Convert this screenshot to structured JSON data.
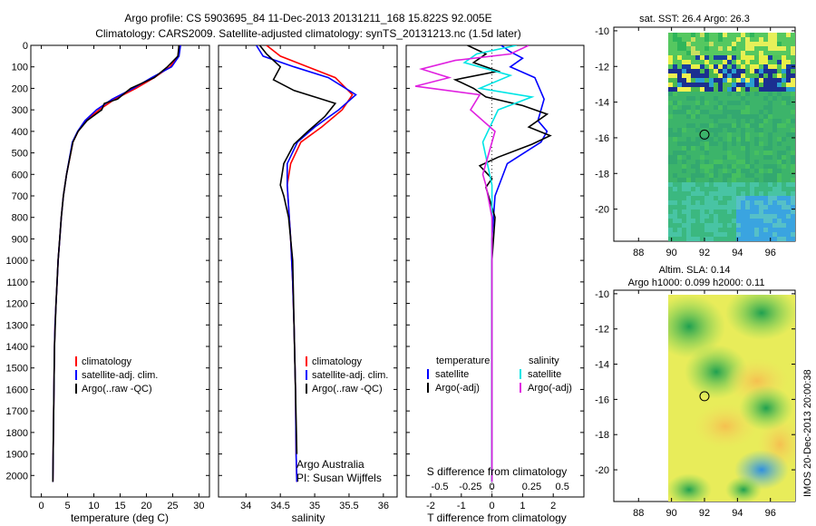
{
  "title_line1": "Argo profile: CS 5903695_84 11-Dec-2013 20131211_168 15.822S 92.005E",
  "title_line2": "Climatology: CARS2009. Satellite-adjusted climatology: synTS_20131213.nc (1.5d later)",
  "colors": {
    "climatology": "#ff0000",
    "satellite": "#0000ff",
    "argo": "#000000",
    "sal_satellite": "#00e5e5",
    "sal_argo": "#e020e0"
  },
  "chart_data": [
    {
      "type": "line",
      "id": "temperature",
      "xlabel": "temperature (deg C)",
      "xlim": [
        -2,
        32
      ],
      "ylim": [
        0,
        2100
      ],
      "y_inverted": true,
      "xticks": [
        0,
        5,
        10,
        15,
        20,
        25,
        30
      ],
      "yticks": [
        0,
        100,
        200,
        300,
        400,
        500,
        600,
        700,
        800,
        900,
        1000,
        1100,
        1200,
        1300,
        1400,
        1500,
        1600,
        1700,
        1800,
        1900,
        2000
      ],
      "legend": [
        "climatology",
        "satellite-adj. clim.",
        "Argo(..raw -QC)"
      ],
      "series": [
        {
          "name": "climatology",
          "color": "#ff0000",
          "x": [
            26.3,
            26.0,
            24.5,
            21.5,
            18.0,
            14.0,
            11.0,
            8.5,
            7.0,
            6.0,
            4.8,
            4.2,
            3.8,
            3.5,
            3.2,
            3.0,
            2.8,
            2.6,
            2.5,
            2.4,
            2.3,
            2.2
          ],
          "y": [
            0,
            50,
            100,
            150,
            200,
            250,
            300,
            350,
            400,
            450,
            600,
            700,
            800,
            900,
            1000,
            1100,
            1200,
            1300,
            1400,
            1600,
            1800,
            2030
          ]
        },
        {
          "name": "satellite-adj. clim.",
          "color": "#0000ff",
          "x": [
            26.5,
            26.2,
            24.8,
            21.0,
            17.5,
            13.5,
            10.5,
            8.3,
            6.9,
            5.9,
            4.8,
            4.2,
            3.8,
            3.5,
            3.2,
            3.0,
            2.8,
            2.6,
            2.5,
            2.4,
            2.3,
            2.2
          ],
          "y": [
            0,
            50,
            100,
            150,
            200,
            250,
            300,
            350,
            400,
            450,
            600,
            700,
            800,
            900,
            1000,
            1100,
            1200,
            1300,
            1400,
            1600,
            1800,
            2030
          ]
        },
        {
          "name": "Argo(..raw -QC)",
          "color": "#000000",
          "x": [
            26.2,
            26.0,
            24.0,
            21.5,
            17.0,
            14.5,
            12.0,
            11.5,
            8.7,
            7.0,
            6.0,
            4.8,
            4.2,
            3.8,
            3.2,
            2.8,
            2.5,
            2.4,
            2.3,
            2.2
          ],
          "y": [
            0,
            50,
            100,
            150,
            200,
            250,
            270,
            300,
            350,
            400,
            450,
            600,
            700,
            800,
            1000,
            1200,
            1400,
            1600,
            1800,
            2030
          ]
        }
      ]
    },
    {
      "type": "line",
      "id": "salinity",
      "xlabel": "salinity",
      "xlim": [
        33.6,
        36.2
      ],
      "ylim": [
        0,
        2100
      ],
      "y_inverted": true,
      "xticks": [
        34,
        34.5,
        35,
        35.5,
        36
      ],
      "legend": [
        "climatology",
        "satellite-adj. clim.",
        "Argo(..raw -QC)"
      ],
      "annotation": [
        "Argo Australia",
        "PI: Susan Wijffels"
      ],
      "series": [
        {
          "name": "climatology",
          "color": "#ff0000",
          "x": [
            34.3,
            34.5,
            34.9,
            35.3,
            35.55,
            35.4,
            35.1,
            34.8,
            34.65,
            34.6,
            34.62,
            34.65,
            34.68,
            34.7,
            34.72,
            34.73,
            34.74
          ],
          "y": [
            0,
            50,
            100,
            150,
            230,
            300,
            380,
            450,
            550,
            650,
            750,
            900,
            1100,
            1300,
            1600,
            1900,
            2030
          ]
        },
        {
          "name": "satellite-adj. clim.",
          "color": "#0000ff",
          "x": [
            34.15,
            34.25,
            34.7,
            35.2,
            35.6,
            35.35,
            35.0,
            34.75,
            34.6,
            34.6,
            34.62,
            34.65,
            34.68,
            34.7,
            34.72,
            34.73,
            34.74
          ],
          "y": [
            0,
            50,
            100,
            150,
            230,
            300,
            380,
            450,
            550,
            650,
            750,
            900,
            1100,
            1300,
            1600,
            1900,
            2030
          ]
        },
        {
          "name": "Argo(..raw -QC)",
          "color": "#000000",
          "x": [
            34.2,
            34.3,
            34.5,
            34.4,
            34.7,
            35.0,
            35.3,
            35.15,
            34.9,
            34.7,
            34.55,
            34.5,
            34.55,
            34.62,
            34.68,
            34.7,
            34.72,
            34.74
          ],
          "y": [
            0,
            40,
            100,
            160,
            210,
            240,
            270,
            330,
            400,
            460,
            550,
            650,
            700,
            800,
            1000,
            1300,
            1600,
            1900
          ]
        }
      ]
    },
    {
      "type": "line",
      "id": "difference",
      "xlabel_top": "S difference from climatology",
      "xlabel": "T difference from climatology",
      "xlim": [
        -2.8,
        3.0
      ],
      "ylim": [
        0,
        2100
      ],
      "y_inverted": true,
      "xticks_T": [
        -2,
        -1,
        0,
        1,
        2
      ],
      "xticks_S": [
        "-0.5",
        "-0.25",
        "0",
        "0.25",
        "0.5"
      ],
      "legend_T": [
        "temperature",
        "satellite",
        "Argo(-adj)"
      ],
      "legend_S": [
        "salinity",
        "satellite",
        "Argo(-adj)"
      ],
      "series": [
        {
          "name": "T satellite",
          "color": "#0000ff",
          "x": [
            0.3,
            0.6,
            1.0,
            0.6,
            1.4,
            1.7,
            1.5,
            1.8,
            1.6,
            0.5,
            0.1,
            0.0,
            0.0,
            0.0,
            0.0,
            0.0
          ],
          "y": [
            0,
            30,
            60,
            100,
            150,
            250,
            350,
            400,
            450,
            550,
            700,
            900,
            1200,
            1500,
            1800,
            2030
          ]
        },
        {
          "name": "T Argo(-adj)",
          "color": "#000000",
          "x": [
            -0.8,
            -0.2,
            -0.6,
            0.2,
            -1.2,
            -0.6,
            -0.2,
            1.0,
            1.8,
            1.2,
            1.9,
            1.3,
            0.2,
            -0.4,
            0.0,
            -0.2,
            0.1,
            0.0,
            0.0,
            0.0,
            0.0
          ],
          "y": [
            0,
            40,
            80,
            120,
            160,
            200,
            240,
            280,
            320,
            380,
            420,
            460,
            520,
            560,
            620,
            660,
            800,
            1000,
            1300,
            1600,
            2030
          ]
        },
        {
          "name": "S satellite",
          "color": "#00e5e5",
          "x": [
            0.8,
            -0.5,
            -0.9,
            0.6,
            -0.4,
            1.3,
            0.2,
            -0.3,
            0.0,
            0.0,
            0.0,
            0.0,
            0.0
          ],
          "y": [
            0,
            40,
            80,
            140,
            200,
            240,
            300,
            450,
            650,
            900,
            1300,
            1700,
            2030
          ]
        },
        {
          "name": "S Argo(-adj)",
          "color": "#e020e0",
          "x": [
            1.2,
            0.6,
            -1.2,
            -2.3,
            -1.4,
            -2.5,
            -0.4,
            -0.7,
            0.1,
            -0.2,
            -0.3,
            -0.2,
            0.0,
            0.0,
            0.0,
            0.0
          ],
          "y": [
            0,
            40,
            70,
            110,
            150,
            190,
            230,
            300,
            400,
            550,
            600,
            650,
            800,
            1200,
            1600,
            2030
          ]
        }
      ]
    },
    {
      "type": "heatmap",
      "id": "sst_map",
      "title": "sat. SST: 26.4 Argo: 26.3",
      "xlim": [
        86.5,
        97.5
      ],
      "ylim": [
        -21.8,
        -9.8
      ],
      "xticks": [
        88,
        90,
        92,
        94,
        96
      ],
      "yticks": [
        -10,
        -12,
        -14,
        -16,
        -18,
        -20
      ],
      "marker": [
        92.0,
        -15.82
      ]
    },
    {
      "type": "heatmap",
      "id": "sla_map",
      "title_line1": "Altim. SLA: 0.14",
      "title_line2": "Argo h1000: 0.099 h2000: 0.11",
      "xlim": [
        86.5,
        97.5
      ],
      "ylim": [
        -21.8,
        -9.8
      ],
      "xticks": [
        88,
        90,
        92,
        94,
        96
      ],
      "yticks": [
        -10,
        -12,
        -14,
        -16,
        -18,
        -20
      ],
      "marker": [
        92.0,
        -15.82
      ]
    }
  ],
  "credit": "IMOS 20-Dec-2013 20:00:38"
}
